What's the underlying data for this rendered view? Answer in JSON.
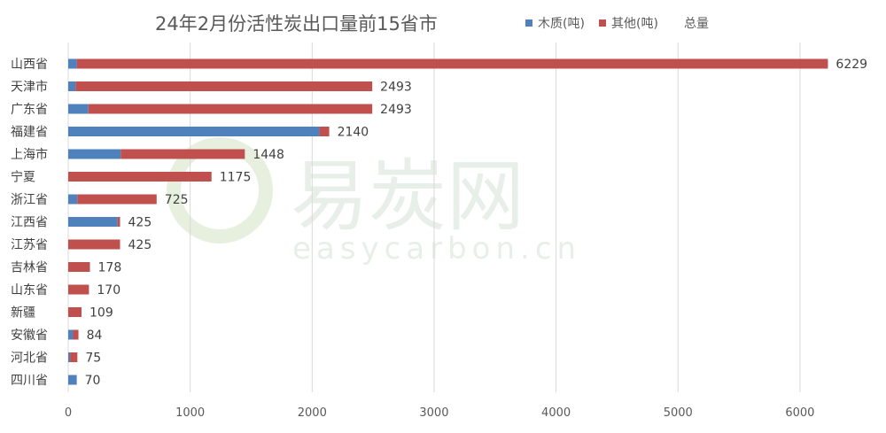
{
  "chart_data": {
    "type": "bar",
    "orientation": "horizontal",
    "stacked": true,
    "title": "24年2月份活性炭出口量前15省市",
    "categories": [
      "山西省",
      "天津市",
      "广东省",
      "福建省",
      "上海市",
      "宁夏",
      "浙江省",
      "江西省",
      "江苏省",
      "吉林省",
      "山东省",
      "新疆",
      "安徽省",
      "河北省",
      "四川省"
    ],
    "series": [
      {
        "name": "木质(吨)",
        "color": "#4f81bd",
        "values": [
          70,
          60,
          165,
          2060,
          430,
          0,
          75,
          405,
          0,
          0,
          0,
          0,
          40,
          15,
          70
        ]
      },
      {
        "name": "其他(吨)",
        "color": "#c0504d",
        "values": [
          6159,
          2433,
          2328,
          80,
          1018,
          1175,
          650,
          20,
          425,
          178,
          170,
          109,
          44,
          60,
          0
        ]
      }
    ],
    "totals_series_name": "总量",
    "totals": [
      6229,
      2493,
      2493,
      2140,
      1448,
      1175,
      725,
      425,
      425,
      178,
      170,
      109,
      84,
      75,
      70
    ],
    "xlim": [
      0,
      6500
    ],
    "xticks": [
      0,
      1000,
      2000,
      3000,
      4000,
      5000,
      6000
    ],
    "grid": true,
    "legend_position": "top-right"
  },
  "watermark": {
    "main": "易炭网",
    "sub": "easycarbon.cn",
    "color": "#8cc63f"
  }
}
